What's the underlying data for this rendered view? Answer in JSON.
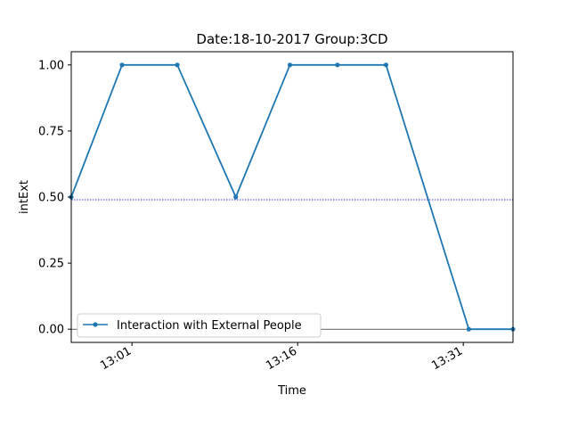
{
  "chart_data": {
    "type": "line",
    "title": "Date:18-10-2017  Group:3CD",
    "xlabel": "Time",
    "ylabel": "intExt",
    "x_ticks": [
      "13:01",
      "13:16",
      "13:31"
    ],
    "x_tick_minutes": [
      781,
      796,
      811
    ],
    "xlim_minutes": [
      775.5,
      815.5
    ],
    "y_ticks": [
      "0.00",
      "0.25",
      "0.50",
      "0.75",
      "1.00"
    ],
    "y_tick_values": [
      0,
      0.25,
      0.5,
      0.75,
      1.0
    ],
    "ylim": [
      -0.05,
      1.05
    ],
    "series": [
      {
        "name": "Interaction with External People",
        "color": "#1f77b4",
        "x_minutes": [
          775.5,
          780.1,
          785.1,
          790.4,
          795.3,
          799.6,
          804.0,
          811.5,
          815.5
        ],
        "values": [
          0.5,
          1.0,
          1.0,
          0.5,
          1.0,
          1.0,
          1.0,
          0.0,
          0.0
        ]
      }
    ],
    "reference_lines": [
      {
        "y": 0.49,
        "color": "#0000cc",
        "style": "dotted"
      },
      {
        "y": 0.0,
        "color": "#000000",
        "style": "solid"
      }
    ],
    "legend_position": "lower-left",
    "grid": false
  }
}
